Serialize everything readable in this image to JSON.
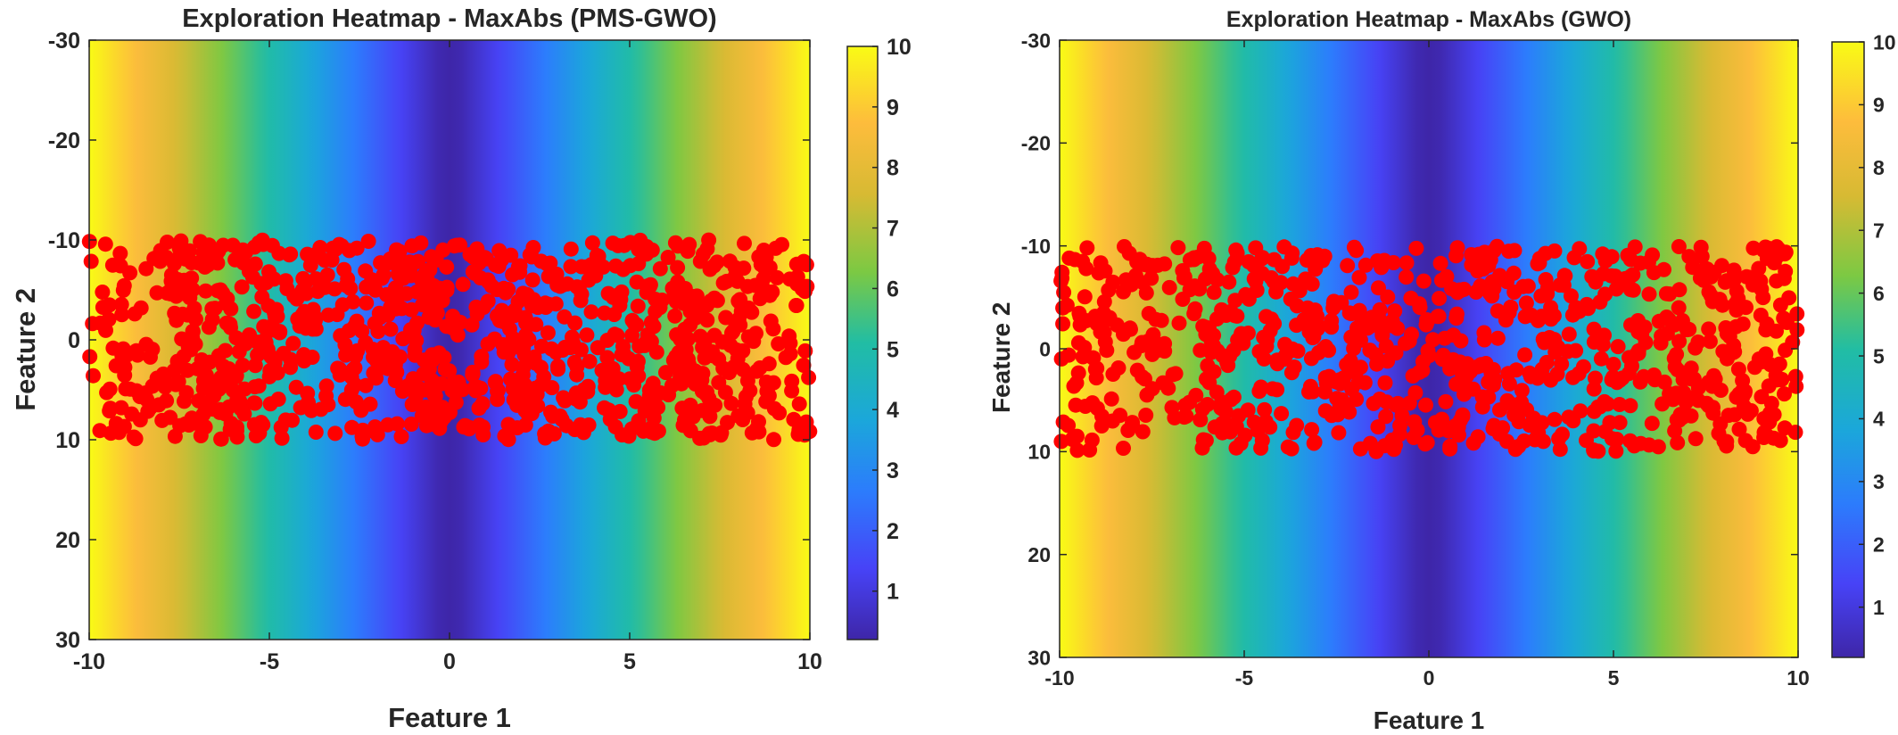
{
  "chart_data": [
    {
      "type": "heatmap",
      "title": "Exploration Heatmap - MaxAbs (PMS-GWO)",
      "xlabel": "Feature 1",
      "ylabel": "Feature 2",
      "xlim": [
        -10,
        10
      ],
      "ylim": [
        -30,
        30
      ],
      "y_reversed": true,
      "xticks": [
        -10,
        -5,
        0,
        5,
        10
      ],
      "yticks": [
        -30,
        -20,
        -10,
        0,
        10,
        20,
        30
      ],
      "heatmap": {
        "function": "abs(Feature 1)",
        "colormap": "parula",
        "clim": [
          0.2,
          10
        ]
      },
      "colorbar": {
        "ticks": [
          1,
          2,
          3,
          4,
          5,
          6,
          7,
          8,
          9,
          10
        ]
      },
      "scatter": {
        "color": "#ff0000",
        "count": 1000,
        "x_range": [
          -10,
          10
        ],
        "y_range": [
          -10,
          10
        ],
        "distribution": "uniform, denser near |Feature 1| = 1 and |Feature 1| = 6"
      }
    },
    {
      "type": "heatmap",
      "title": "Exploration Heatmap - MaxAbs (GWO)",
      "xlabel": "Feature 1",
      "ylabel": "Feature 2",
      "xlim": [
        -10,
        10
      ],
      "ylim": [
        -30,
        30
      ],
      "y_reversed": true,
      "xticks": [
        -10,
        -5,
        0,
        5,
        10
      ],
      "yticks": [
        -30,
        -20,
        -10,
        0,
        10,
        20,
        30
      ],
      "heatmap": {
        "function": "abs(Feature 1)",
        "colormap": "parula",
        "clim": [
          0.2,
          10
        ]
      },
      "colorbar": {
        "ticks": [
          1,
          2,
          3,
          4,
          5,
          6,
          7,
          8,
          9,
          10
        ]
      },
      "scatter": {
        "color": "#ff0000",
        "count": 850,
        "x_range": [
          -10,
          10
        ],
        "y_range": [
          -10,
          10
        ],
        "distribution": "uniform"
      }
    }
  ]
}
